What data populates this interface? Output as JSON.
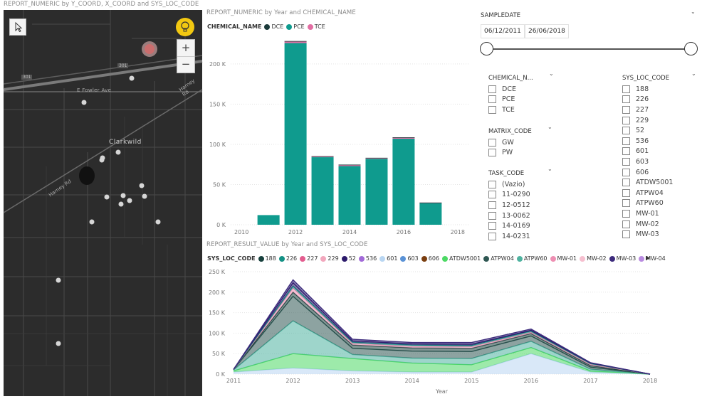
{
  "map_visual": {
    "title": "REPORT_NUMERIC by Y_COORD, X_COORD and SYS_LOC_CODE",
    "labels": {
      "road_301a": "301",
      "road_301b": "301",
      "fowler": "E Fowler Ave",
      "harney_top": "Harney Rd",
      "clarkwild": "Clarkwild",
      "harney_left": "Harney Rd"
    },
    "zoom_in": "+",
    "zoom_out": "−",
    "icons": {
      "select": "cursor-arrow-icon",
      "bulb": "lightbulb-icon"
    }
  },
  "bar_visual": {
    "title": "REPORT_NUMERIC by Year and CHEMICAL_NAME",
    "legend_title": "CHEMICAL_NAME",
    "legend": [
      {
        "name": "DCE",
        "color": "#1b3a3a"
      },
      {
        "name": "PCE",
        "color": "#0f9b8e"
      },
      {
        "name": "TCE",
        "color": "#e26ea3"
      }
    ]
  },
  "area_visual": {
    "title": "REPORT_RESULT_VALUE by Year and SYS_LOC_CODE",
    "legend_title": "SYS_LOC_CODE",
    "legend": [
      {
        "name": "188",
        "color": "#17403d"
      },
      {
        "name": "226",
        "color": "#149185"
      },
      {
        "name": "227",
        "color": "#e35d8f"
      },
      {
        "name": "229",
        "color": "#f2a7bd"
      },
      {
        "name": "52",
        "color": "#2c1a6b"
      },
      {
        "name": "536",
        "color": "#a26ad8"
      },
      {
        "name": "601",
        "color": "#b9d6f2"
      },
      {
        "name": "603",
        "color": "#5a92d6"
      },
      {
        "name": "606",
        "color": "#7a3e10"
      },
      {
        "name": "ATDW5001",
        "color": "#4cd964"
      },
      {
        "name": "ATPW04",
        "color": "#2f5753"
      },
      {
        "name": "ATPW60",
        "color": "#4fb3a0"
      },
      {
        "name": "MW-01",
        "color": "#ee8fb3"
      },
      {
        "name": "MW-02",
        "color": "#f6bfcf"
      },
      {
        "name": "MW-03",
        "color": "#3d2b7c"
      },
      {
        "name": "MW-04",
        "color": "#b98be0"
      }
    ],
    "scroll_arrow": "▶",
    "xlabel": "Year"
  },
  "chart_data": [
    {
      "type": "bar",
      "title": "REPORT_NUMERIC by Year and CHEMICAL_NAME",
      "categories": [
        "2011",
        "2012",
        "2013",
        "2014",
        "2015",
        "2016",
        "2017"
      ],
      "x": [
        2011,
        2012,
        2013,
        2014,
        2015,
        2016,
        2017
      ],
      "series": [
        {
          "name": "PCE",
          "values": [
            12000,
            226000,
            84000,
            73000,
            82000,
            107000,
            27000
          ]
        },
        {
          "name": "TCE",
          "values": [
            0,
            2000,
            1000,
            1500,
            1000,
            1500,
            500
          ]
        },
        {
          "name": "DCE",
          "values": [
            0,
            500,
            300,
            300,
            300,
            300,
            100
          ]
        }
      ],
      "xticks": [
        "2010",
        "2012",
        "2014",
        "2016",
        "2018"
      ],
      "xtick_values": [
        2010,
        2012,
        2014,
        2016,
        2018
      ],
      "yticks": [
        "0 K",
        "50 K",
        "100 K",
        "150 K",
        "200 K"
      ],
      "ytick_values": [
        0,
        50000,
        100000,
        150000,
        200000
      ],
      "xlim": [
        2009.6,
        2018.4
      ],
      "ylim": [
        0,
        230000
      ],
      "grid": true
    },
    {
      "type": "area",
      "title": "REPORT_RESULT_VALUE by Year and SYS_LOC_CODE",
      "x": [
        2011,
        2012,
        2013,
        2014,
        2015,
        2016,
        2017,
        2018
      ],
      "stacked": true,
      "series": [
        {
          "name": "601",
          "values": [
            5000,
            15000,
            8000,
            5000,
            5000,
            50000,
            5000,
            0
          ]
        },
        {
          "name": "ATDW5001",
          "values": [
            3000,
            35000,
            30000,
            22000,
            18000,
            15000,
            3000,
            0
          ]
        },
        {
          "name": "ATPW60",
          "values": [
            2000,
            80000,
            10000,
            12000,
            15000,
            15000,
            4000,
            0
          ]
        },
        {
          "name": "ATPW04",
          "values": [
            1000,
            60000,
            15000,
            17000,
            17000,
            13000,
            5000,
            0
          ]
        },
        {
          "name": "188",
          "values": [
            500,
            10000,
            8000,
            8000,
            8000,
            6000,
            4000,
            0
          ]
        },
        {
          "name": "MW-01",
          "values": [
            0,
            10000,
            4000,
            4000,
            4000,
            3000,
            3000,
            0
          ]
        },
        {
          "name": "226",
          "values": [
            0,
            5000,
            3000,
            3000,
            3000,
            3000,
            2000,
            0
          ]
        },
        {
          "name": "52",
          "values": [
            0,
            8000,
            3000,
            3000,
            3000,
            2000,
            1000,
            0
          ]
        },
        {
          "name": "MW-03",
          "values": [
            0,
            7000,
            4000,
            3000,
            4000,
            3000,
            1000,
            0
          ]
        }
      ],
      "xticks": [
        "2011",
        "2012",
        "2013",
        "2014",
        "2015",
        "2016",
        "2017",
        "2018"
      ],
      "yticks": [
        "0 K",
        "50 K",
        "100 K",
        "150 K",
        "200 K",
        "250 K"
      ],
      "ytick_values": [
        0,
        50000,
        100000,
        150000,
        200000,
        250000
      ],
      "ylim": [
        0,
        250000
      ],
      "xlabel": "Year",
      "grid": true
    }
  ],
  "slicers": {
    "sampledate": {
      "title": "SAMPLEDATE",
      "start": "06/12/2011",
      "end": "26/06/2018"
    },
    "chemical": {
      "title": "CHEMICAL_N...",
      "items": [
        "DCE",
        "PCE",
        "TCE"
      ]
    },
    "matrix": {
      "title": "MATRIX_CODE",
      "items": [
        "GW",
        "PW"
      ]
    },
    "task": {
      "title": "TASK_CODE",
      "items": [
        "(Vazio)",
        "11-0290",
        "12-0512",
        "13-0062",
        "14-0169",
        "14-0231"
      ]
    },
    "sysloc": {
      "title": "SYS_LOC_CODE",
      "items": [
        "188",
        "226",
        "227",
        "229",
        "52",
        "536",
        "601",
        "603",
        "606",
        "ATDW5001",
        "ATPW04",
        "ATPW60",
        "MW-01",
        "MW-02",
        "MW-03"
      ]
    },
    "chevron": "⌄"
  }
}
